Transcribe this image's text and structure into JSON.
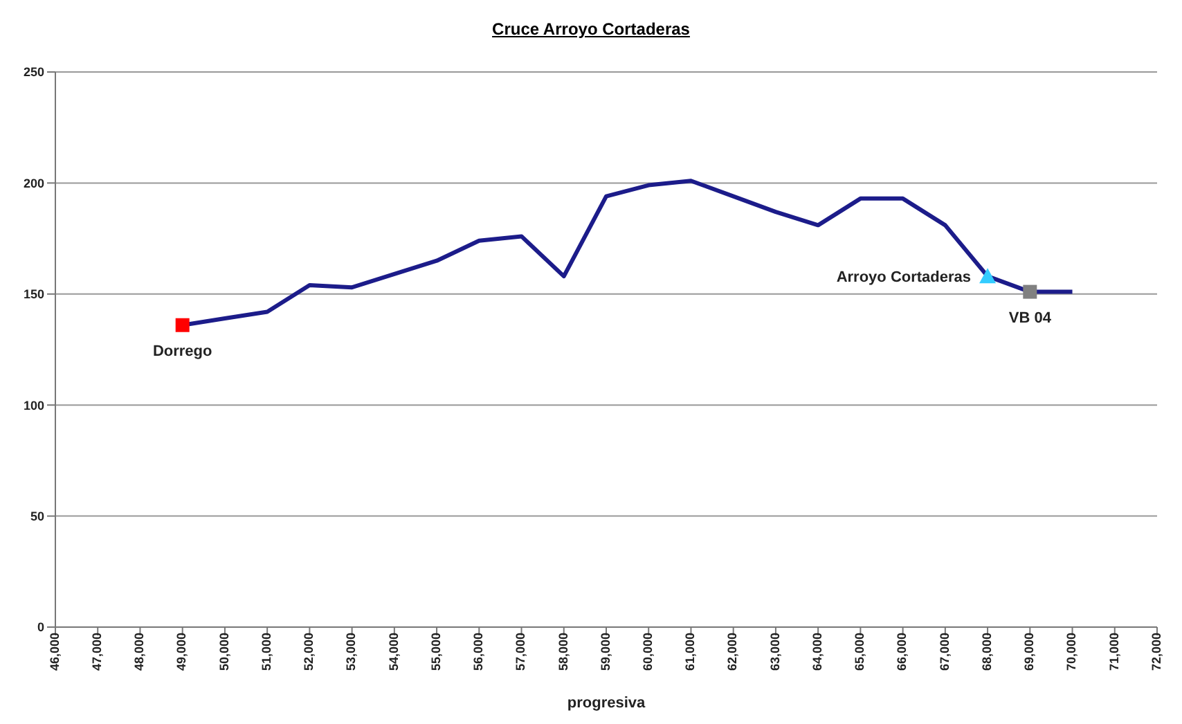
{
  "chart_data": {
    "type": "line",
    "title": "Cruce Arroyo Cortaderas",
    "xlabel": "progresiva",
    "x": [
      49000,
      50000,
      51000,
      52000,
      53000,
      54000,
      55000,
      56000,
      57000,
      58000,
      59000,
      60000,
      61000,
      62000,
      63000,
      64000,
      65000,
      66000,
      67000,
      68000,
      69000,
      70000
    ],
    "series": [
      {
        "color": "#1c1c8a",
        "marker": "none",
        "values": [
          136,
          139,
          142,
          154,
          153,
          159,
          165,
          174,
          176,
          158,
          194,
          199,
          201,
          194,
          187,
          181,
          193,
          193,
          181,
          158,
          151,
          151
        ]
      },
      {
        "type": "scatter",
        "name": "Dorrego",
        "color": "#ff0000",
        "marker": "square",
        "x": [
          49000
        ],
        "values": [
          136
        ]
      },
      {
        "type": "scatter",
        "name": "Arroyo Cortaderas",
        "color": "#33ccff",
        "marker": "triangle",
        "x": [
          68000
        ],
        "values": [
          158
        ]
      },
      {
        "type": "scatter",
        "name": "VB 04",
        "color": "#808080",
        "marker": "square",
        "x": [
          69000
        ],
        "values": [
          151
        ]
      }
    ],
    "xlim": [
      46000,
      72000
    ],
    "xticks": [
      {
        "value": 46000,
        "label": "46,000"
      },
      {
        "value": 47000,
        "label": "47,000"
      },
      {
        "value": 48000,
        "label": "48,000"
      },
      {
        "value": 49000,
        "label": "49,000"
      },
      {
        "value": 50000,
        "label": "50,000"
      },
      {
        "value": 51000,
        "label": "51,000"
      },
      {
        "value": 52000,
        "label": "52,000"
      },
      {
        "value": 53000,
        "label": "53,000"
      },
      {
        "value": 54000,
        "label": "54,000"
      },
      {
        "value": 55000,
        "label": "55,000"
      },
      {
        "value": 56000,
        "label": "56,000"
      },
      {
        "value": 57000,
        "label": "57,000"
      },
      {
        "value": 58000,
        "label": "58,000"
      },
      {
        "value": 59000,
        "label": "59,000"
      },
      {
        "value": 60000,
        "label": "60,000"
      },
      {
        "value": 61000,
        "label": "61,000"
      },
      {
        "value": 62000,
        "label": "62,000"
      },
      {
        "value": 63000,
        "label": "63,000"
      },
      {
        "value": 64000,
        "label": "64,000"
      },
      {
        "value": 65000,
        "label": "65,000"
      },
      {
        "value": 66000,
        "label": "66,000"
      },
      {
        "value": 67000,
        "label": "67,000"
      },
      {
        "value": 68000,
        "label": "68,000"
      },
      {
        "value": 69000,
        "label": "69,000"
      },
      {
        "value": 70000,
        "label": "70,000"
      },
      {
        "value": 71000,
        "label": "71,000"
      },
      {
        "value": 72000,
        "label": "72,000"
      }
    ],
    "ylim": [
      0,
      250
    ],
    "yticks": [
      0,
      50,
      100,
      150,
      200,
      250
    ],
    "grid": "y",
    "legend": false
  }
}
